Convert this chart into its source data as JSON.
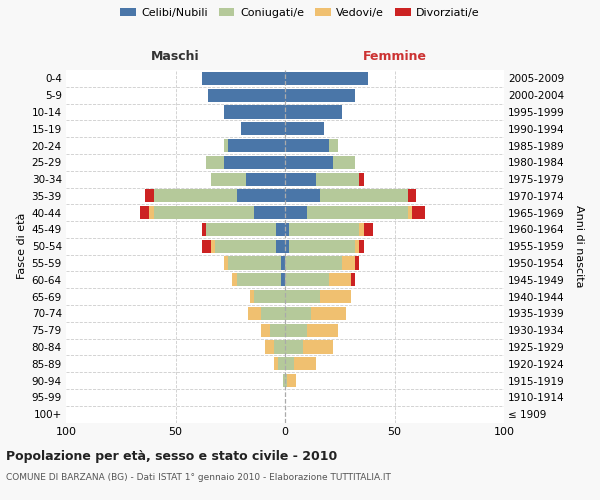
{
  "age_groups": [
    "100+",
    "95-99",
    "90-94",
    "85-89",
    "80-84",
    "75-79",
    "70-74",
    "65-69",
    "60-64",
    "55-59",
    "50-54",
    "45-49",
    "40-44",
    "35-39",
    "30-34",
    "25-29",
    "20-24",
    "15-19",
    "10-14",
    "5-9",
    "0-4"
  ],
  "birth_years": [
    "≤ 1909",
    "1910-1914",
    "1915-1919",
    "1920-1924",
    "1925-1929",
    "1930-1934",
    "1935-1939",
    "1940-1944",
    "1945-1949",
    "1950-1954",
    "1955-1959",
    "1960-1964",
    "1965-1969",
    "1970-1974",
    "1975-1979",
    "1980-1984",
    "1985-1989",
    "1990-1994",
    "1995-1999",
    "2000-2004",
    "2005-2009"
  ],
  "maschi": {
    "celibi": [
      0,
      0,
      0,
      0,
      0,
      0,
      0,
      0,
      2,
      2,
      4,
      4,
      14,
      22,
      18,
      28,
      26,
      20,
      28,
      35,
      38
    ],
    "coniugati": [
      0,
      0,
      1,
      3,
      5,
      7,
      11,
      14,
      20,
      24,
      28,
      32,
      46,
      38,
      16,
      8,
      2,
      0,
      0,
      0,
      0
    ],
    "vedovi": [
      0,
      0,
      0,
      2,
      4,
      4,
      6,
      2,
      2,
      2,
      2,
      0,
      2,
      0,
      0,
      0,
      0,
      0,
      0,
      0,
      0
    ],
    "divorziati": [
      0,
      0,
      0,
      0,
      0,
      0,
      0,
      0,
      0,
      0,
      4,
      2,
      4,
      4,
      0,
      0,
      0,
      0,
      0,
      0,
      0
    ]
  },
  "femmine": {
    "nubili": [
      0,
      0,
      0,
      0,
      0,
      0,
      0,
      0,
      0,
      0,
      2,
      2,
      10,
      16,
      14,
      22,
      20,
      18,
      26,
      32,
      38
    ],
    "coniugate": [
      0,
      0,
      1,
      4,
      8,
      10,
      12,
      16,
      20,
      26,
      30,
      32,
      46,
      40,
      20,
      10,
      4,
      0,
      0,
      0,
      0
    ],
    "vedove": [
      0,
      0,
      4,
      10,
      14,
      14,
      16,
      14,
      10,
      6,
      2,
      2,
      2,
      0,
      0,
      0,
      0,
      0,
      0,
      0,
      0
    ],
    "divorziate": [
      0,
      0,
      0,
      0,
      0,
      0,
      0,
      0,
      2,
      2,
      2,
      4,
      6,
      4,
      2,
      0,
      0,
      0,
      0,
      0,
      0
    ]
  },
  "colors": {
    "celibi": "#4a76a8",
    "coniugati": "#b5c99a",
    "vedovi": "#f0c070",
    "divorziati": "#cc2222"
  },
  "xlim": 100,
  "title": "Popolazione per età, sesso e stato civile - 2010",
  "subtitle": "COMUNE DI BARZANA (BG) - Dati ISTAT 1° gennaio 2010 - Elaborazione TUTTITALIA.IT",
  "label_maschi": "Maschi",
  "label_femmine": "Femmine",
  "ylabel_left": "Fasce di età",
  "ylabel_right": "Anni di nascita",
  "legend": [
    "Celibi/Nubili",
    "Coniugati/e",
    "Vedovi/e",
    "Divorziati/e"
  ],
  "bg_color": "#f8f8f8",
  "plot_bg": "#ffffff",
  "bar_height": 0.78
}
